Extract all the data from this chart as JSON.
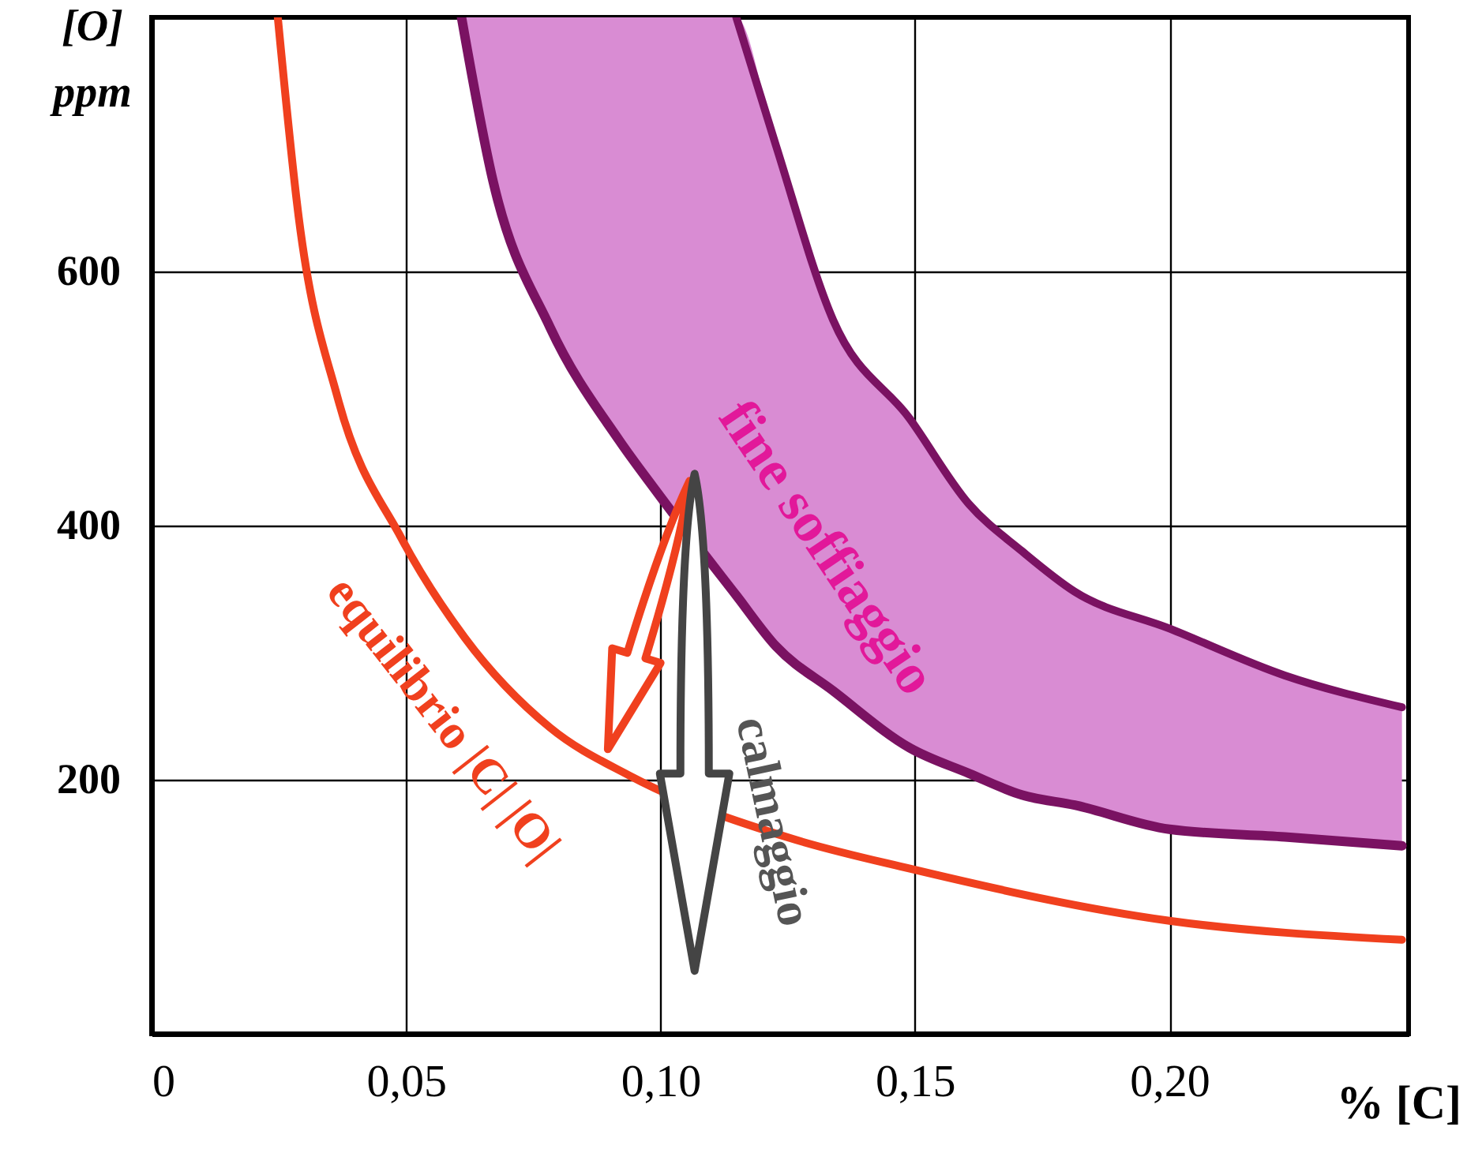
{
  "chart_data": {
    "type": "line",
    "xlabel": "% [C]",
    "ylabel": "[O] ppm",
    "xlim": [
      0,
      0.247
    ],
    "ylim": [
      0,
      800
    ],
    "xticks": [
      {
        "value": 0,
        "label": "0"
      },
      {
        "value": 0.05,
        "label": "0,05"
      },
      {
        "value": 0.1,
        "label": "0,10"
      },
      {
        "value": 0.15,
        "label": "0,15"
      },
      {
        "value": 0.2,
        "label": "0,20"
      }
    ],
    "yticks": [
      200,
      400,
      600
    ],
    "grid": true,
    "series": [
      {
        "name": "fine soffiaggio",
        "color": "#7a1262",
        "x": [
          0.0609,
          0.0671,
          0.0783,
          0.0919,
          0.099,
          0.1149,
          0.1227,
          0.1339,
          0.149,
          0.1606,
          0.171,
          0.1814,
          0.2,
          0.2227,
          0.2457
        ],
        "values": [
          800,
          671,
          556,
          467,
          428,
          345,
          305,
          270,
          225,
          205,
          188,
          180,
          161,
          155,
          148
        ],
        "lower": [
          800,
          671,
          556,
          467,
          428,
          345,
          305,
          270,
          225,
          205,
          188,
          180,
          161,
          155,
          148
        ],
        "upper": [
          800,
          800,
          800,
          800,
          800,
          800,
          699,
          562,
          484,
          417,
          380,
          348,
          319,
          282,
          257
        ]
      },
      {
        "color": "#7a1262",
        "x": [
          0.1149,
          0.1227,
          0.1339,
          0.149,
          0.1606,
          0.171,
          0.1814,
          0.2,
          0.2227,
          0.2457
        ],
        "values": [
          800,
          699,
          562,
          484,
          417,
          380,
          348,
          319,
          282,
          257
        ]
      },
      {
        "name": "equilibrio |C| |O|",
        "color": "#f0401e",
        "x": [
          0.0248,
          0.0289,
          0.0366,
          0.0491,
          0.0615,
          0.0783,
          0.094,
          0.1255,
          0.149,
          0.2,
          0.2457
        ],
        "values": [
          800,
          643,
          500,
          390,
          312,
          241,
          203,
          154,
          130,
          89,
          74
        ]
      }
    ],
    "annotations": [
      {
        "text": "calmaggio",
        "x": 0.122,
        "y": 167
      }
    ]
  }
}
